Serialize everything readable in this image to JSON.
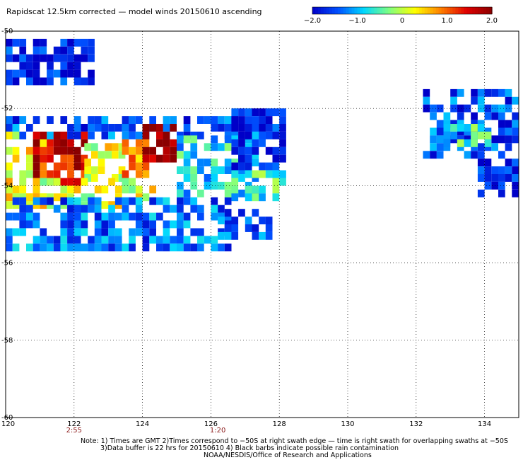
{
  "chart_data": {
    "type": "heatmap",
    "title": "Rapidscat 12.5km corrected — model winds 20150610 ascending",
    "xlim": [
      120,
      135
    ],
    "ylim": [
      -60,
      -50
    ],
    "x_ticks": [
      "120",
      "122",
      "124",
      "126",
      "128",
      "130",
      "132",
      "134"
    ],
    "x_tick_values": [
      120,
      122,
      124,
      126,
      128,
      130,
      132,
      134
    ],
    "y_ticks": [
      "-50",
      "-52",
      "-54",
      "-56",
      "-58",
      "-60"
    ],
    "y_tick_values": [
      -50,
      -52,
      -54,
      -56,
      -58,
      -60
    ],
    "colorbar": {
      "min": -2.0,
      "max": 2.0,
      "tick_labels": [
        "−2.0",
        "−1.0",
        "0",
        "1.0",
        "2.0"
      ],
      "tick_values": [
        -2.0,
        -1.0,
        0,
        1.0,
        2.0
      ],
      "colors": [
        "#0000c8",
        "#0050ff",
        "#00d8ff",
        "#80ff80",
        "#ffff00",
        "#ff8000",
        "#e00000",
        "#8b0000"
      ]
    },
    "grid": true,
    "time_labels": [
      {
        "text": "2:55",
        "lon": 122
      },
      {
        "text": "1:20",
        "lon": 126.2
      }
    ],
    "regions": [
      {
        "lon": [
          120,
          122.5
        ],
        "lat": [
          -50.2,
          -51.3
        ],
        "level": -1.8
      },
      {
        "lon": [
          120,
          127.8
        ],
        "lat": [
          -52.2,
          -52.7
        ],
        "level": -1.5
      },
      {
        "lon": [
          120,
          121.2
        ],
        "lat": [
          -52.6,
          -54.5
        ],
        "level": 0.4
      },
      {
        "lon": [
          120.8,
          122.3
        ],
        "lat": [
          -52.6,
          -53.9
        ],
        "level": 1.6
      },
      {
        "lon": [
          122.3,
          123.4
        ],
        "lat": [
          -52.9,
          -53.9
        ],
        "level": 0.1
      },
      {
        "lon": [
          123.4,
          124.2
        ],
        "lat": [
          -52.8,
          -53.9
        ],
        "level": 0.6
      },
      {
        "lon": [
          124.0,
          125.0
        ],
        "lat": [
          -52.4,
          -53.4
        ],
        "level": 1.9
      },
      {
        "lon": [
          120,
          124.3
        ],
        "lat": [
          -53.8,
          -54.5
        ],
        "level": 0.2
      },
      {
        "lon": [
          120,
          126.5
        ],
        "lat": [
          -54.3,
          -55.6
        ],
        "level": -1.3
      },
      {
        "lon": [
          125,
          127.4
        ],
        "lat": [
          -52.7,
          -54.3
        ],
        "level": -0.8
      },
      {
        "lon": [
          126.6,
          128.2
        ],
        "lat": [
          -52.0,
          -53.6
        ],
        "level": -1.8
      },
      {
        "lon": [
          126.6,
          128.2
        ],
        "lat": [
          -53.6,
          -54.3
        ],
        "level": -0.6
      },
      {
        "lon": [
          126.2,
          127.8
        ],
        "lat": [
          -54.6,
          -55.3
        ],
        "level": -1.4
      },
      {
        "lon": [
          132.2,
          135
        ],
        "lat": [
          -51.5,
          -53.3
        ],
        "level": -1.5
      },
      {
        "lon": [
          132.8,
          134.2
        ],
        "lat": [
          -52.4,
          -52.9
        ],
        "level": -0.6
      },
      {
        "lon": [
          133.8,
          135
        ],
        "lat": [
          -53.3,
          -54.3
        ],
        "level": -1.8
      }
    ]
  },
  "notes": {
    "line1": "Note: 1) Times are GMT 2)Times correspond to −50S at right swath edge — time is right swath for overlapping swaths at −50S",
    "line2": "3)Data buffer is 22 hrs for 20150610 4) Black barbs indicate possible rain contamination",
    "line3": "NOAA/NESDIS/Office of Research and Applications"
  }
}
